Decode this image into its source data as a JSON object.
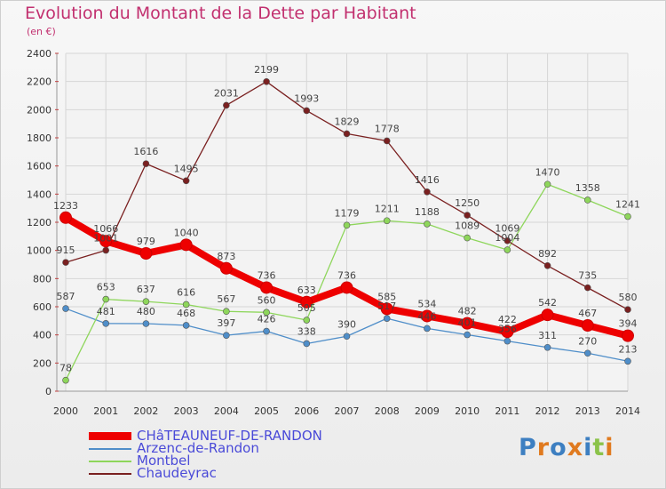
{
  "header": {
    "title": "Evolution du Montant de la Dette par Habitant",
    "subtitle": "(en €)"
  },
  "brand": {
    "text": "Proxiti"
  },
  "chart_data": {
    "type": "line",
    "title": "Evolution du Montant de la Dette par Habitant",
    "subtitle": "(en €)",
    "xlabel": "",
    "ylabel": "",
    "x": [
      "2000",
      "2001",
      "2002",
      "2003",
      "2004",
      "2005",
      "2006",
      "2007",
      "2008",
      "2009",
      "2010",
      "2011",
      "2012",
      "2013",
      "2014"
    ],
    "ylim": [
      0,
      2400
    ],
    "yticks": [
      0,
      200,
      400,
      600,
      800,
      1000,
      1200,
      1400,
      1600,
      1800,
      2000,
      2200,
      2400
    ],
    "grid": true,
    "legend_position": "bottom-left",
    "series": [
      {
        "name": "CHâTEAUNEUF-DE-RANDON",
        "color": "#ee0000",
        "values": [
          1233,
          1066,
          979,
          1040,
          873,
          736,
          633,
          736,
          585,
          534,
          482,
          422,
          542,
          467,
          394
        ],
        "labels": [
          "1233",
          "1066",
          "979",
          "1040",
          "873",
          "736",
          "633",
          "736",
          "585",
          "534",
          "482",
          "422",
          "542",
          "467",
          "394"
        ]
      },
      {
        "name": "Arzenc-de-Randon",
        "color": "#4f8ec9",
        "values": [
          587,
          481,
          480,
          468,
          397,
          426,
          338,
          390,
          517,
          446,
          401,
          356,
          311,
          270,
          213
        ],
        "labels": [
          "587",
          "481",
          "480",
          "468",
          "397",
          "426",
          "338",
          "390",
          "517",
          "446",
          "401",
          "356",
          "311",
          "270",
          "213"
        ]
      },
      {
        "name": "Montbel",
        "color": "#8ed65b",
        "values": [
          78,
          653,
          637,
          616,
          567,
          560,
          505,
          1179,
          1211,
          1188,
          1089,
          1004,
          1470,
          1358,
          1241
        ],
        "labels": [
          "78",
          "653",
          "637",
          "616",
          "567",
          "560",
          "505",
          "1179",
          "1211",
          "1188",
          "1089",
          "1004",
          "1470",
          "1358",
          "1241"
        ]
      },
      {
        "name": "Chaudeyrac",
        "color": "#7a2020",
        "values": [
          915,
          1001,
          1616,
          1495,
          2031,
          2199,
          1993,
          1829,
          1778,
          1416,
          1250,
          1069,
          892,
          735,
          580
        ],
        "labels": [
          "915",
          "1001",
          "1616",
          "1495",
          "2031",
          "2199",
          "1993",
          "1829",
          "1778",
          "1416",
          "1250",
          "1069",
          "892",
          "735",
          "580"
        ]
      }
    ]
  }
}
